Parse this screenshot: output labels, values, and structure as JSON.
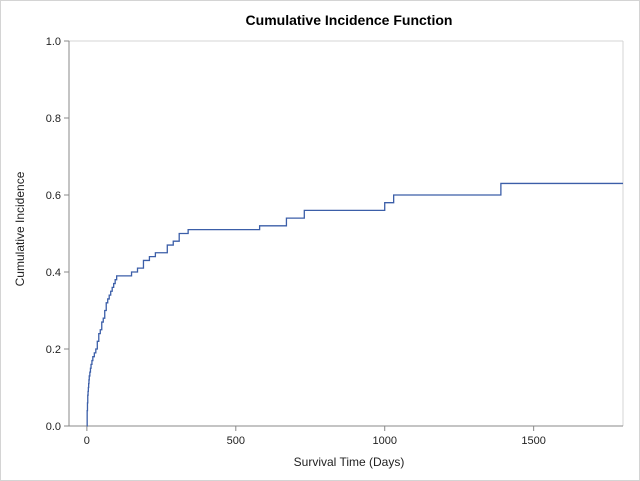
{
  "chart_data": {
    "type": "line",
    "title": "Cumulative Incidence Function",
    "xlabel": "Survival Time (Days)",
    "ylabel": "Cumulative Incidence",
    "xlim": [
      -60,
      1800
    ],
    "ylim": [
      0,
      1.0
    ],
    "x_ticks": [
      0,
      500,
      1000,
      1500
    ],
    "y_ticks": [
      0.0,
      0.2,
      0.4,
      0.6,
      0.8,
      1.0
    ],
    "x_tick_labels": [
      "0",
      "500",
      "1000",
      "1500"
    ],
    "y_tick_labels": [
      "0.0",
      "0.2",
      "0.4",
      "0.6",
      "0.8",
      "1.0"
    ],
    "grid": false,
    "line_color": "#3b5ea8",
    "series": [
      {
        "step": "post",
        "x": [
          0,
          1,
          2,
          3,
          4,
          5,
          6,
          7,
          8,
          10,
          12,
          14,
          17,
          20,
          25,
          30,
          35,
          40,
          45,
          50,
          55,
          60,
          65,
          70,
          75,
          80,
          85,
          90,
          95,
          100,
          110,
          150,
          170,
          190,
          210,
          230,
          270,
          290,
          310,
          340,
          580,
          670,
          730,
          1000,
          1030,
          1390,
          1800
        ],
        "y": [
          0.0,
          0.04,
          0.06,
          0.08,
          0.09,
          0.1,
          0.11,
          0.12,
          0.13,
          0.14,
          0.15,
          0.16,
          0.17,
          0.18,
          0.19,
          0.2,
          0.22,
          0.24,
          0.25,
          0.27,
          0.28,
          0.3,
          0.32,
          0.33,
          0.34,
          0.35,
          0.36,
          0.37,
          0.38,
          0.39,
          0.39,
          0.4,
          0.41,
          0.43,
          0.44,
          0.45,
          0.47,
          0.48,
          0.5,
          0.51,
          0.52,
          0.54,
          0.56,
          0.58,
          0.6,
          0.63,
          0.63
        ]
      }
    ]
  }
}
